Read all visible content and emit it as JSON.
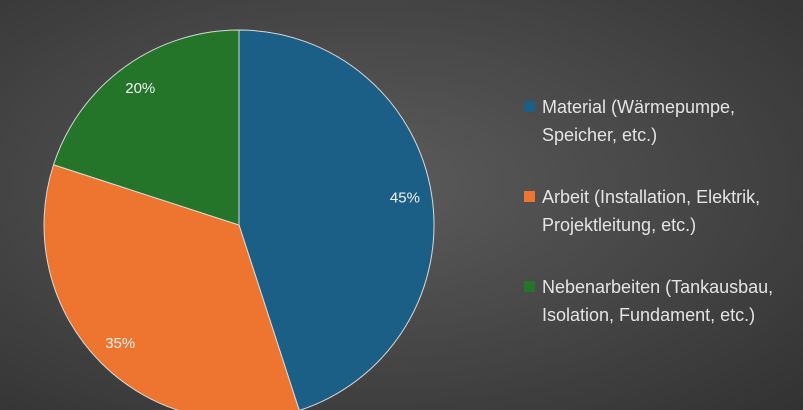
{
  "chart_data": {
    "type": "pie",
    "categories": [
      "Material (Wärmepumpe, Speicher, etc.)",
      "Arbeit (Installation, Elektrik, Projektleitung, etc.)",
      "Nebenarbeiten (Tankausbau, Isolation, Fundament, etc.)"
    ],
    "values": [
      45,
      35,
      20
    ],
    "value_labels": [
      "45%",
      "35%",
      "20%"
    ],
    "colors": [
      "#1c5f86",
      "#ee7530",
      "#24742a"
    ]
  }
}
